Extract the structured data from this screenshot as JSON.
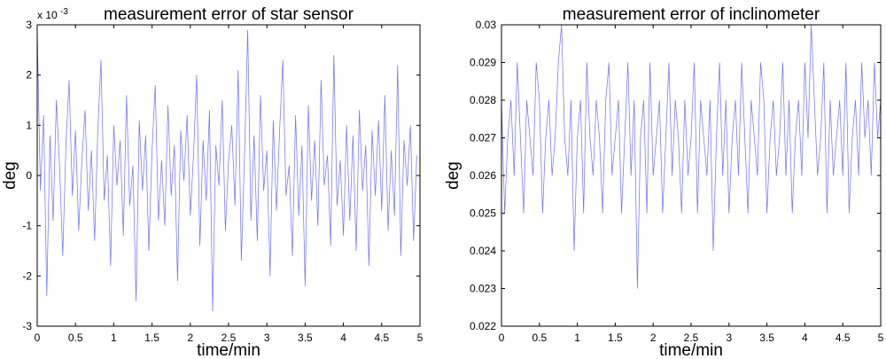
{
  "chart_data": [
    {
      "type": "line",
      "title": "measurement error of star sensor",
      "xlabel": "time/min",
      "ylabel": "deg",
      "xlim": [
        0,
        5
      ],
      "ylim": [
        -3,
        3
      ],
      "y_multiplier_label": "x 10",
      "y_multiplier_exponent": "-3",
      "xticks": [
        "0",
        "0.5",
        "1",
        "1.5",
        "2",
        "2.5",
        "3",
        "3.5",
        "4",
        "4.5",
        "5"
      ],
      "xtick_values": [
        0,
        0.5,
        1,
        1.5,
        2,
        2.5,
        3,
        3.5,
        4,
        4.5,
        5
      ],
      "yticks": [
        "-3",
        "-2",
        "-1",
        "0",
        "1",
        "2",
        "3"
      ],
      "ytick_values": [
        -3,
        -2,
        -1,
        0,
        1,
        2,
        3
      ],
      "grid": false,
      "line_color": "#6e6ef5",
      "series": [
        {
          "x_start": 0,
          "x_step": 0.04167,
          "values": [
            2.9,
            -0.3,
            1.2,
            -2.4,
            0.8,
            -0.9,
            1.5,
            0.2,
            -1.6,
            0.6,
            1.9,
            -0.4,
            0.9,
            -1.1,
            0.3,
            1.3,
            -0.7,
            0.5,
            -1.3,
            0.9,
            2.3,
            -0.5,
            0.4,
            -1.8,
            1.0,
            -0.2,
            0.7,
            -1.2,
            1.6,
            -0.6,
            0.2,
            -2.5,
            1.1,
            -0.3,
            0.8,
            -1.5,
            0.5,
            1.8,
            -0.9,
            0.3,
            -1.0,
            1.4,
            -0.4,
            0.6,
            -2.1,
            0.9,
            -0.1,
            1.2,
            -0.8,
            0.4,
            2.0,
            -1.4,
            0.7,
            -0.5,
            1.3,
            -2.7,
            0.6,
            -0.2,
            1.5,
            -1.1,
            0.3,
            1.0,
            -0.6,
            2.1,
            -1.7,
            0.4,
            2.9,
            -0.9,
            0.8,
            -1.3,
            1.6,
            -0.3,
            0.5,
            -2.0,
            1.1,
            -0.7,
            0.9,
            2.3,
            -0.4,
            0.2,
            -1.6,
            1.2,
            -0.8,
            0.6,
            -2.2,
            1.4,
            -0.5,
            0.7,
            -1.0,
            1.9,
            -0.2,
            0.4,
            -1.4,
            2.4,
            -0.6,
            0.3,
            -1.2,
            1.0,
            -0.9,
            0.8,
            -1.5,
            1.3,
            -0.3,
            0.6,
            -1.8,
            0.9,
            -0.4,
            1.1,
            -0.7,
            1.6,
            -1.1,
            0.5,
            -0.8,
            2.2,
            -1.6,
            0.7,
            -0.2,
            1.0,
            -1.3,
            0.4
          ]
        }
      ]
    },
    {
      "type": "line",
      "title": "measurement error of inclinometer",
      "xlabel": "time/min",
      "ylabel": "deg",
      "xlim": [
        0,
        5
      ],
      "ylim": [
        0.022,
        0.03
      ],
      "xticks": [
        "0",
        "0.5",
        "1",
        "1.5",
        "2",
        "2.5",
        "3",
        "3.5",
        "4",
        "4.5",
        "5"
      ],
      "xtick_values": [
        0,
        0.5,
        1,
        1.5,
        2,
        2.5,
        3,
        3.5,
        4,
        4.5,
        5
      ],
      "yticks": [
        "0.022",
        "0.023",
        "0.024",
        "0.025",
        "0.026",
        "0.027",
        "0.028",
        "0.029",
        "0.03"
      ],
      "ytick_values": [
        0.022,
        0.023,
        0.024,
        0.025,
        0.026,
        0.027,
        0.028,
        0.029,
        0.03
      ],
      "grid": false,
      "line_color": "#6e6ef5",
      "series": [
        {
          "x_start": 0,
          "x_step": 0.04167,
          "values": [
            0.028,
            0.025,
            0.027,
            0.028,
            0.026,
            0.029,
            0.027,
            0.025,
            0.028,
            0.027,
            0.026,
            0.029,
            0.028,
            0.025,
            0.027,
            0.028,
            0.026,
            0.027,
            0.029,
            0.03,
            0.027,
            0.026,
            0.028,
            0.024,
            0.027,
            0.028,
            0.025,
            0.029,
            0.027,
            0.026,
            0.028,
            0.027,
            0.025,
            0.028,
            0.029,
            0.026,
            0.027,
            0.028,
            0.025,
            0.027,
            0.029,
            0.026,
            0.028,
            0.023,
            0.027,
            0.028,
            0.025,
            0.029,
            0.026,
            0.027,
            0.028,
            0.025,
            0.027,
            0.029,
            0.026,
            0.028,
            0.027,
            0.025,
            0.028,
            0.026,
            0.027,
            0.029,
            0.025,
            0.028,
            0.027,
            0.026,
            0.028,
            0.024,
            0.027,
            0.029,
            0.026,
            0.028,
            0.025,
            0.027,
            0.028,
            0.026,
            0.029,
            0.027,
            0.025,
            0.028,
            0.027,
            0.026,
            0.029,
            0.028,
            0.025,
            0.027,
            0.028,
            0.026,
            0.027,
            0.029,
            0.026,
            0.028,
            0.025,
            0.027,
            0.028,
            0.026,
            0.029,
            0.027,
            0.03,
            0.028,
            0.026,
            0.027,
            0.029,
            0.025,
            0.028,
            0.026,
            0.027,
            0.028,
            0.026,
            0.029,
            0.025,
            0.027,
            0.028,
            0.026,
            0.029,
            0.027,
            0.028,
            0.026,
            0.029,
            0.027,
            0.028
          ]
        }
      ]
    }
  ]
}
